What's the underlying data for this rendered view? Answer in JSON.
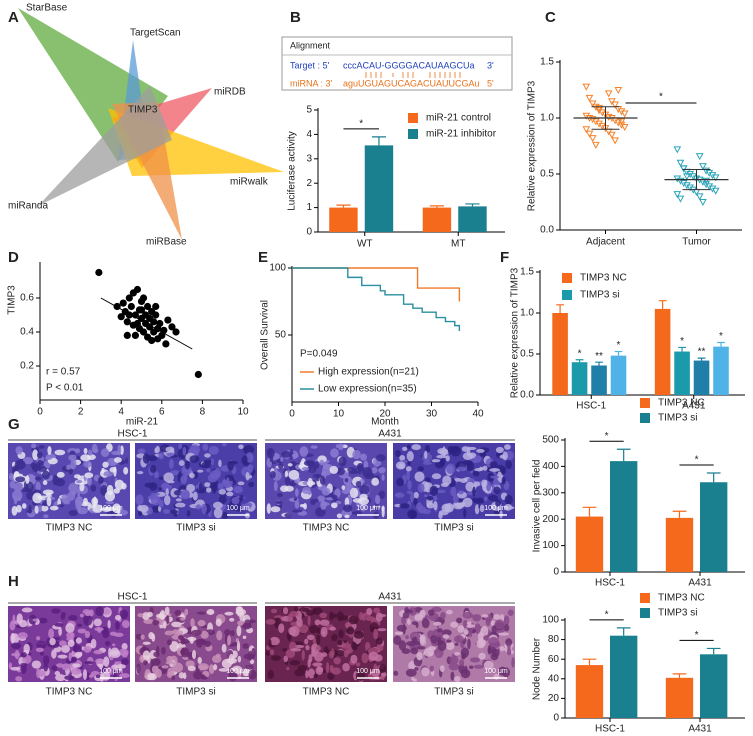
{
  "diagram": {
    "panel": "A",
    "sets": [
      "StarBase",
      "TargetScan",
      "miRDB",
      "miRwalk",
      "miRBase",
      "miRanda"
    ],
    "center": "TIMP3"
  },
  "alignment": {
    "title": "Alignment",
    "target_label": "Target :  5'",
    "target_seq": "cccACAU-GGGGACAUAAGCUa",
    "target_end": "3'",
    "mirna_label": "miRNA : 3'",
    "mirna_seq": "aguUGUAGUCAGACUAUUCGAu",
    "mirna_end": "5'"
  },
  "micrographs": [
    {
      "panel": "G",
      "groups": [
        "HSC-1",
        "A431"
      ],
      "captions": [
        "TIMP3 NC",
        "TIMP3 si",
        "TIMP3 NC",
        "TIMP3 si"
      ],
      "scale_label": "100 μm"
    },
    {
      "panel": "H",
      "groups": [
        "HSC-1",
        "A431"
      ],
      "captions": [
        "TIMP3 NC",
        "TIMP3 si",
        "TIMP3 NC",
        "TIMP3 si"
      ],
      "scale_label": "100 μm"
    }
  ],
  "chart_data": [
    {
      "panel": "B",
      "type": "bar",
      "ylabel": "Luciferase activity",
      "categories": [
        "WT",
        "MT"
      ],
      "series": [
        {
          "name": "miR-21 control",
          "color": "#f5691c",
          "values": [
            1.0,
            1.0
          ],
          "errors": [
            0.1,
            0.07
          ]
        },
        {
          "name": "miR-21 inhibitor",
          "color": "#1a7f8f",
          "values": [
            3.55,
            1.05
          ],
          "errors": [
            0.35,
            0.1
          ]
        }
      ],
      "ylim": [
        0,
        5
      ],
      "yticks": [
        0,
        1,
        2,
        3,
        4,
        5
      ],
      "bracket_labels": [
        "*",
        null
      ]
    },
    {
      "panel": "C",
      "type": "strip",
      "ylabel": "Relative expression of TIMP3",
      "categories": [
        "Adjacent",
        "Tumor"
      ],
      "series": [
        {
          "color": "#f5822a",
          "values": [
            1.28,
            1.22,
            1.18,
            1.15,
            1.13,
            1.12,
            1.1,
            1.08,
            1.07,
            1.06,
            1.05,
            1.04,
            1.03,
            1.02,
            1.01,
            1.0,
            1.0,
            0.99,
            0.98,
            0.97,
            0.96,
            0.95,
            0.94,
            0.93,
            0.92,
            0.91,
            0.9,
            0.88,
            0.86,
            0.85,
            0.82,
            0.8,
            0.76,
            1.25,
            1.09,
            0.97
          ],
          "mean": 1.0,
          "sd": 0.1
        },
        {
          "color": "#2aa5b8",
          "values": [
            0.72,
            0.66,
            0.6,
            0.57,
            0.55,
            0.53,
            0.52,
            0.51,
            0.5,
            0.49,
            0.48,
            0.47,
            0.46,
            0.46,
            0.45,
            0.44,
            0.43,
            0.42,
            0.41,
            0.4,
            0.39,
            0.38,
            0.37,
            0.36,
            0.35,
            0.34,
            0.32,
            0.3,
            0.28,
            0.25,
            0.55,
            0.44,
            0.48
          ],
          "mean": 0.45,
          "sd": 0.09
        }
      ],
      "ylim": [
        0,
        1.5
      ],
      "yticks": [
        {
          "value": 0,
          "label": "0.0"
        },
        0.5,
        {
          "value": 1,
          "label": "1.0"
        },
        1.5
      ],
      "bracket_label": "*"
    },
    {
      "panel": "D",
      "type": "scatter",
      "xlabel": "miR-21",
      "ylabel": "TIMP3",
      "color": "#000000",
      "x": [
        2.9,
        3.8,
        4.0,
        4.1,
        4.2,
        4.3,
        4.4,
        4.4,
        4.5,
        4.6,
        4.6,
        4.7,
        4.7,
        4.8,
        4.8,
        4.9,
        4.9,
        5.0,
        5.0,
        5.1,
        5.1,
        5.2,
        5.2,
        5.3,
        5.3,
        5.4,
        5.4,
        5.5,
        5.5,
        5.6,
        5.6,
        5.7,
        5.8,
        5.8,
        5.9,
        6.0,
        6.1,
        6.2,
        6.3,
        6.5,
        6.7,
        7.8,
        4.3,
        5.0,
        5.7
      ],
      "y": [
        0.75,
        0.55,
        0.49,
        0.57,
        0.52,
        0.46,
        0.6,
        0.5,
        0.55,
        0.44,
        0.63,
        0.5,
        0.38,
        0.65,
        0.45,
        0.53,
        0.42,
        0.58,
        0.48,
        0.6,
        0.4,
        0.5,
        0.45,
        0.55,
        0.37,
        0.48,
        0.43,
        0.52,
        0.35,
        0.46,
        0.4,
        0.5,
        0.42,
        0.36,
        0.45,
        0.38,
        0.41,
        0.33,
        0.47,
        0.43,
        0.4,
        0.15,
        0.38,
        0.53,
        0.55
      ],
      "trend_line": {
        "x": [
          3.0,
          7.5
        ],
        "y": [
          0.6,
          0.3
        ]
      },
      "xlim": [
        0,
        10
      ],
      "xticks": [
        0,
        2,
        4,
        6,
        8,
        10
      ],
      "ylim": [
        0,
        0.8
      ],
      "yticks": [
        0.2,
        0.4,
        0.6
      ],
      "annotations": [
        "r = 0.57",
        "P < 0.01"
      ]
    },
    {
      "panel": "E",
      "type": "line",
      "xlabel": "Month",
      "ylabel": "Overall Survival",
      "series": [
        {
          "name": "High expression(n=21)",
          "color": "#f07a2b",
          "x": [
            0,
            27,
            27,
            36,
            36
          ],
          "values": [
            100,
            100,
            85,
            85,
            75
          ]
        },
        {
          "name": "Low expression(n=35)",
          "color": "#2a8fa0",
          "x": [
            0,
            12,
            12,
            15,
            15,
            19,
            19,
            20,
            20,
            24,
            24,
            26,
            26,
            28,
            28,
            31,
            31,
            33,
            33,
            35,
            35,
            36,
            36
          ],
          "values": [
            100,
            100,
            93,
            93,
            87,
            87,
            83,
            83,
            80,
            80,
            73,
            73,
            70,
            70,
            67,
            67,
            63,
            63,
            60,
            60,
            57,
            57,
            53
          ]
        }
      ],
      "xlim": [
        0,
        40
      ],
      "xticks": [
        0,
        10,
        20,
        30,
        40
      ],
      "ylim": [
        0,
        100
      ],
      "yticks": [
        50,
        100
      ],
      "annotations": [
        "P=0.049"
      ]
    },
    {
      "panel": "F",
      "type": "bar",
      "ylabel": "Relative expression of TIMP3",
      "categories": [
        "HSC-1",
        "A431"
      ],
      "series": [
        {
          "name": "TIMP3 NC",
          "color": "#f5691c",
          "values": [
            1.0,
            1.05
          ],
          "errors": [
            0.1,
            0.1
          ]
        },
        {
          "name": "TIMP3 si",
          "color": "#1a9aaa",
          "values": [
            0.4,
            0.53
          ],
          "errors": [
            0.03,
            0.05
          ],
          "sig_labels": [
            "*",
            "*"
          ]
        },
        {
          "color": "#1f7fa8",
          "values": [
            0.36,
            0.42
          ],
          "errors": [
            0.04,
            0.03
          ],
          "sig_labels": [
            "**",
            "**"
          ]
        },
        {
          "color": "#4fb3e8",
          "values": [
            0.48,
            0.59
          ],
          "errors": [
            0.05,
            0.05
          ],
          "sig_labels": [
            "*",
            "*"
          ]
        }
      ],
      "ylim": [
        0,
        1.5
      ],
      "yticks": [
        {
          "value": 0,
          "label": "0.0"
        },
        0.5,
        {
          "value": 1,
          "label": "1.0"
        },
        1.5
      ]
    },
    {
      "type": "bar",
      "ylabel": "Invasive cell per field",
      "categories": [
        "HSC-1",
        "A431"
      ],
      "series": [
        {
          "name": "TIMP3 NC",
          "color": "#f5691c",
          "values": [
            210,
            205
          ],
          "errors": [
            35,
            25
          ]
        },
        {
          "name": "TIMP3 si",
          "color": "#1a7f8f",
          "values": [
            420,
            340
          ],
          "errors": [
            45,
            35
          ]
        }
      ],
      "ylim": [
        0,
        500
      ],
      "yticks": [
        0,
        100,
        200,
        300,
        400,
        500
      ],
      "bracket_labels": [
        "*",
        "*"
      ]
    },
    {
      "type": "bar",
      "ylabel": "Node Number",
      "categories": [
        "HSC-1",
        "A431"
      ],
      "series": [
        {
          "name": "TIMP3 NC",
          "color": "#f5691c",
          "values": [
            54,
            41
          ],
          "errors": [
            6,
            4
          ]
        },
        {
          "name": "TIMP3 si",
          "color": "#1a7f8f",
          "values": [
            84,
            65
          ],
          "errors": [
            8,
            6
          ]
        }
      ],
      "ylim": [
        0,
        100
      ],
      "yticks": [
        0,
        20,
        40,
        60,
        80,
        100
      ],
      "bracket_labels": [
        "*",
        "*"
      ]
    }
  ]
}
